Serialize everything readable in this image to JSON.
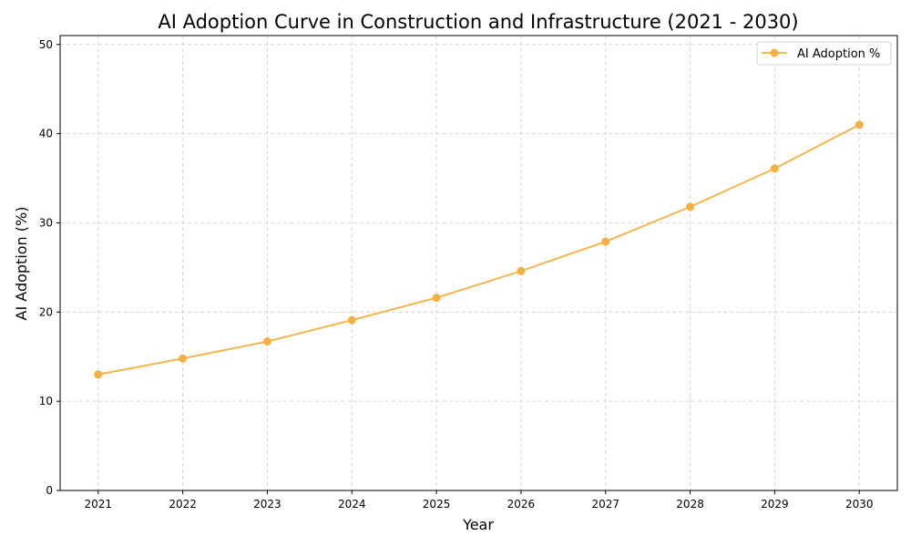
{
  "chart_data": {
    "type": "line",
    "title": "AI Adoption Curve in Construction and Infrastructure (2021 - 2030)",
    "xlabel": "Year",
    "ylabel": "AI Adoption (%)",
    "x": [
      2021,
      2022,
      2023,
      2024,
      2025,
      2026,
      2027,
      2028,
      2029,
      2030
    ],
    "series": [
      {
        "name": "AI Adoption %",
        "values": [
          13.0,
          14.8,
          16.7,
          19.1,
          21.6,
          24.6,
          27.9,
          31.8,
          36.1,
          41.0
        ],
        "color": "#f5b041",
        "marker": "circle"
      }
    ],
    "xticks": [
      "2021",
      "2022",
      "2023",
      "2024",
      "2025",
      "2026",
      "2027",
      "2028",
      "2029",
      "2030"
    ],
    "yticks": [
      "0",
      "10",
      "20",
      "30",
      "40",
      "50"
    ],
    "xlim": [
      2020.55,
      2030.45
    ],
    "ylim": [
      0,
      51
    ],
    "grid": true,
    "legend": "top-right"
  }
}
